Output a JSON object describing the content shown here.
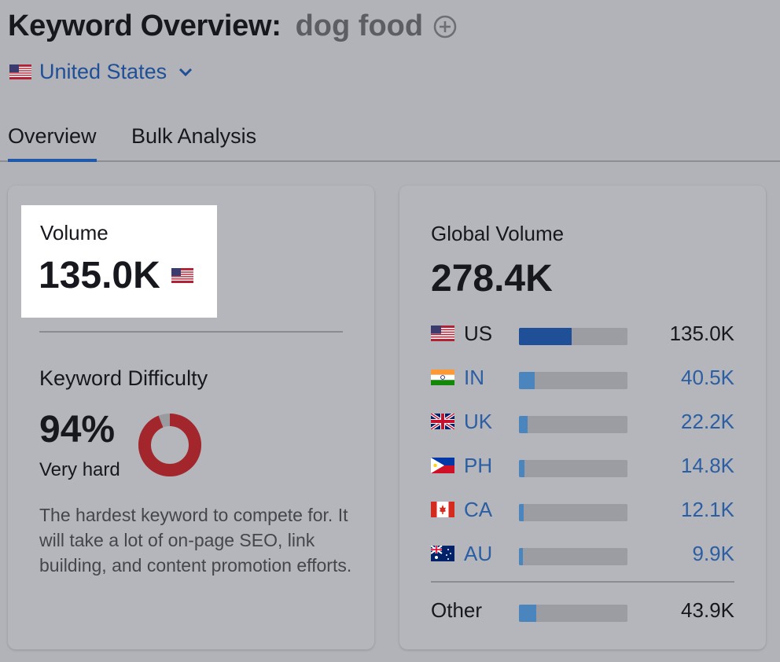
{
  "header": {
    "title": "Keyword Overview:",
    "keyword": "dog food",
    "add_icon": "plus-circle-icon"
  },
  "database": {
    "label": "United States",
    "flag": "us-flag-icon",
    "dropdown_icon": "chevron-down-icon"
  },
  "tabs": [
    {
      "label": "Overview",
      "active": true
    },
    {
      "label": "Bulk Analysis",
      "active": false
    }
  ],
  "volume": {
    "label": "Volume",
    "value": "135.0K",
    "flag": "us-flag-icon"
  },
  "keyword_difficulty": {
    "label": "Keyword Difficulty",
    "value": "94%",
    "percent": 94,
    "level": "Very hard",
    "description": "The hardest keyword to compete for. It will take a lot of on-page SEO, link building, and content promotion efforts.",
    "color": "#a3262c",
    "track_color": "#9a9b9f"
  },
  "global_volume": {
    "label": "Global Volume",
    "value": "278.4K",
    "countries": [
      {
        "code": "US",
        "value": "135.0K",
        "share": 0.485,
        "flag": "us-flag-icon"
      },
      {
        "code": "IN",
        "value": "40.5K",
        "share": 0.145,
        "flag": "india-flag-icon"
      },
      {
        "code": "UK",
        "value": "22.2K",
        "share": 0.08,
        "flag": "uk-flag-icon"
      },
      {
        "code": "PH",
        "value": "14.8K",
        "share": 0.053,
        "flag": "philippines-flag-icon"
      },
      {
        "code": "CA",
        "value": "12.1K",
        "share": 0.043,
        "flag": "canada-flag-icon"
      },
      {
        "code": "AU",
        "value": "9.9K",
        "share": 0.036,
        "flag": "australia-flag-icon"
      }
    ],
    "other": {
      "label": "Other",
      "value": "43.9K",
      "share": 0.158
    }
  },
  "colors": {
    "accent": "#1f5aa8",
    "link": "#2b5ea3",
    "bar_primary": "#1f4f97",
    "bar_secondary": "#4a85be",
    "bar_track": "#9c9da2"
  }
}
